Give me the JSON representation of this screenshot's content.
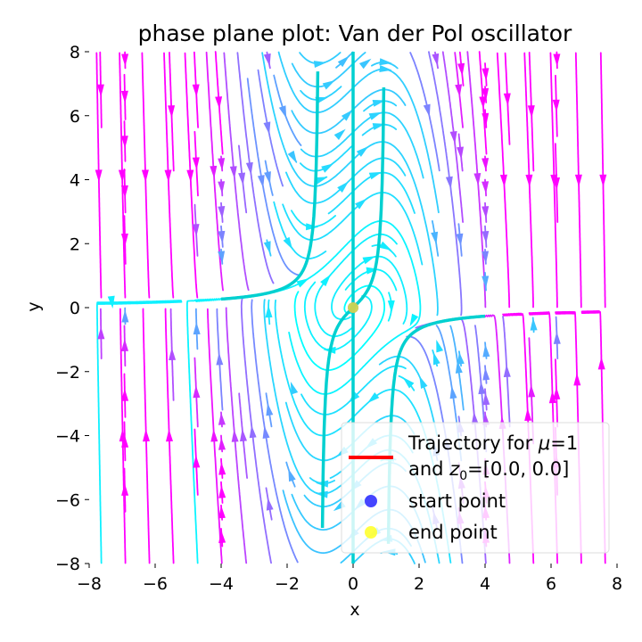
{
  "chart_data": {
    "type": "streamplot",
    "title": "phase plane plot: Van der Pol oscillator",
    "xlabel": "x",
    "ylabel": "y",
    "xlim": [
      -8,
      8
    ],
    "ylim": [
      -8,
      8
    ],
    "xticks": [
      -8,
      -6,
      -4,
      -2,
      0,
      2,
      4,
      6,
      8
    ],
    "yticks": [
      -8,
      -6,
      -4,
      -2,
      0,
      2,
      4,
      6,
      8
    ],
    "xtick_labels": [
      "−8",
      "−6",
      "−4",
      "−2",
      "0",
      "2",
      "4",
      "6",
      "8"
    ],
    "ytick_labels": [
      "−8",
      "−6",
      "−4",
      "−2",
      "0",
      "2",
      "4",
      "6",
      "8"
    ],
    "grid": false,
    "mu": 1,
    "z0": [
      0.0,
      0.0
    ],
    "field": "dx/dt = y, dy/dt = mu*(1 - x^2)*y - x",
    "colormap": [
      "#00ffff",
      "#ff00ff"
    ],
    "nullclines": {
      "x_nullcline": "x = 0",
      "y_nullcline": "y = x / (1 - x^2)",
      "color": "#00d0d0"
    },
    "trajectory": {
      "color": "#ff0000",
      "points": [
        [
          0.0,
          0.0
        ]
      ]
    },
    "start_point": {
      "x": 0.0,
      "y": 0.0,
      "color": "#2525ff"
    },
    "end_point": {
      "x": 0.0,
      "y": 0.0,
      "color": "#ffff22"
    },
    "legend": {
      "placement": "lower-right",
      "entries": [
        {
          "label_line1": "Trajectory for ",
          "label_mu": "μ",
          "label_mu_tail": "=1",
          "label_line2_pre": "and ",
          "label_z": "z",
          "label_sub": "0",
          "label_line2_post": "=[0.0, 0.0]",
          "kind": "line",
          "color": "#ff0000"
        },
        {
          "label": "start point",
          "kind": "marker",
          "color": "#2525ff"
        },
        {
          "label": "end point",
          "kind": "marker",
          "color": "#ffff22"
        }
      ]
    }
  }
}
